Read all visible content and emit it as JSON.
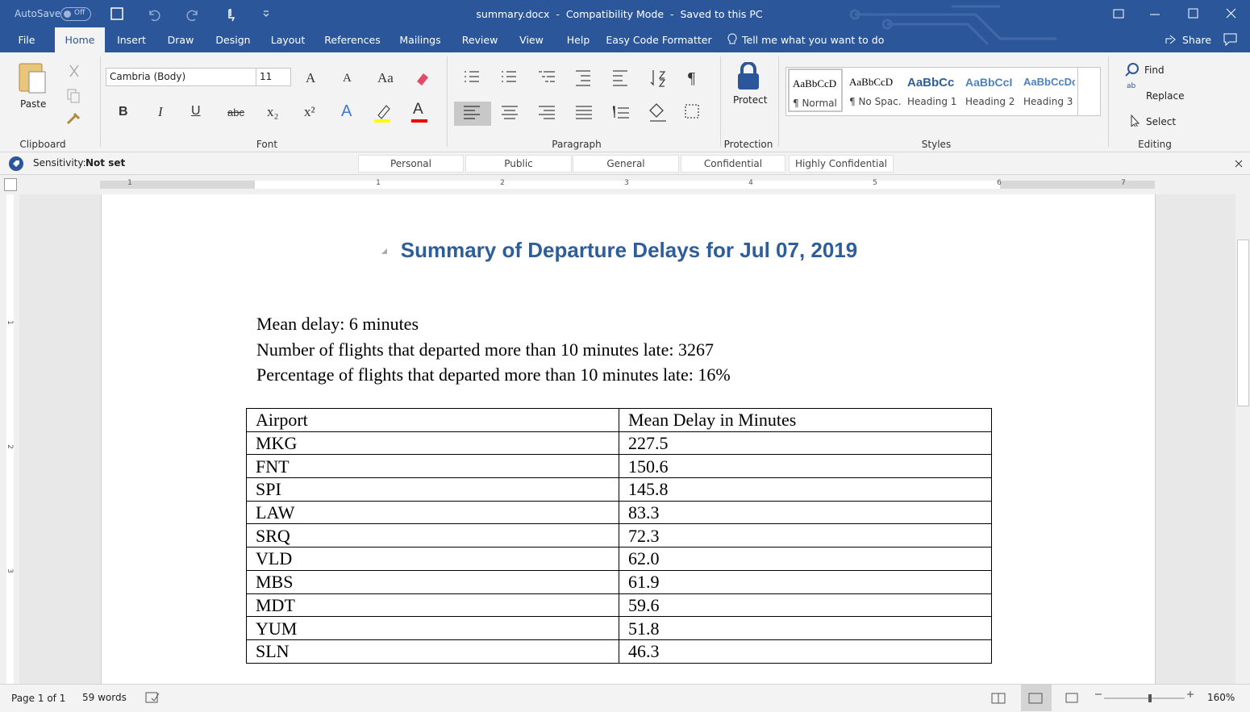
{
  "titlebar": {
    "autosave": "AutoSave",
    "autosave_state": "Off",
    "title": "summary.docx  -  Compatibility Mode  -  Saved to this PC"
  },
  "tabs": [
    "File",
    "Home",
    "Insert",
    "Draw",
    "Design",
    "Layout",
    "References",
    "Mailings",
    "Review",
    "View",
    "Help",
    "Easy Code Formatter"
  ],
  "tell_me": "Tell me what you want to do",
  "share": "Share",
  "ribbon": {
    "clipboard": {
      "paste": "Paste",
      "label": "Clipboard"
    },
    "font": {
      "name": "Cambria (Body)",
      "size": "11",
      "label": "Font",
      "icons": {
        "grow": "A",
        "shrink": "A",
        "case": "Aa",
        "bold": "B",
        "italic": "I",
        "underline": "U",
        "strike": "abc",
        "sub": "x₂",
        "sup": "x²",
        "effects": "A",
        "color": "A"
      }
    },
    "paragraph": {
      "label": "Paragraph",
      "pilcrow": "¶"
    },
    "protection": {
      "protect": "Protect",
      "label": "Protection"
    },
    "styles": {
      "label": "Styles",
      "items": [
        {
          "preview": "AaBbCcD",
          "name": "¶ Normal"
        },
        {
          "preview": "AaBbCcD",
          "name": "¶ No Spac..."
        },
        {
          "preview": "AaBbCc",
          "name": "Heading 1"
        },
        {
          "preview": "AaBbCcI",
          "name": "Heading 2"
        },
        {
          "preview": "AaBbCcDc",
          "name": "Heading 3"
        }
      ]
    },
    "editing": {
      "find": "Find",
      "replace": "Replace",
      "select": "Select",
      "label": "Editing"
    }
  },
  "sensitivity": {
    "label": "Sensitivity:",
    "value": "Not set",
    "options": [
      "Personal",
      "Public",
      "General",
      "Confidential",
      "Highly Confidential"
    ]
  },
  "ruler": {
    "horizontal": [
      "1",
      "1",
      "2",
      "3",
      "4",
      "5",
      "6",
      "7"
    ],
    "vertical": [
      "1",
      "2",
      "3"
    ]
  },
  "document": {
    "title": "Summary of Departure Delays for Jul 07, 2019",
    "lines": [
      "Mean delay: 6 minutes",
      "Number of flights that departed more than 10 minutes late: 3267",
      "Percentage of flights that departed more than 10 minutes late: 16%"
    ],
    "table": {
      "header": [
        "Airport",
        "Mean Delay in Minutes"
      ],
      "rows": [
        [
          "MKG",
          "227.5"
        ],
        [
          "FNT",
          "150.6"
        ],
        [
          "SPI",
          "145.8"
        ],
        [
          "LAW",
          "83.3"
        ],
        [
          "SRQ",
          "72.3"
        ],
        [
          "VLD",
          "62.0"
        ],
        [
          "MBS",
          "61.9"
        ],
        [
          "MDT",
          "59.6"
        ],
        [
          "YUM",
          "51.8"
        ],
        [
          "SLN",
          "46.3"
        ]
      ]
    }
  },
  "status": {
    "page": "Page 1 of 1",
    "words": "59 words",
    "zoom": "160%"
  }
}
